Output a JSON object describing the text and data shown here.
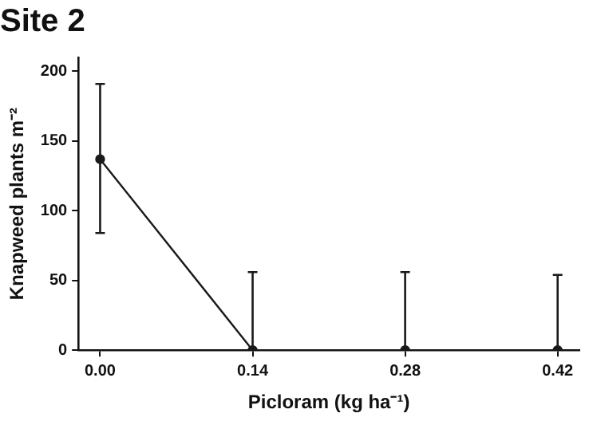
{
  "chart_data": {
    "type": "line",
    "title": "Site 2",
    "xlabel": "Picloram (kg ha⁻¹)",
    "ylabel": "Knapweed plants m⁻²",
    "x": [
      0,
      0.14,
      0.28,
      0.42
    ],
    "series": [
      {
        "color": "#1a1a1a",
        "values": [
          137,
          0,
          0,
          0
        ],
        "errors": [
          [
            84,
            191
          ],
          [
            0,
            56
          ],
          [
            0,
            56
          ],
          [
            0,
            54
          ]
        ]
      }
    ],
    "xlim": [
      -0.02,
      0.44
    ],
    "xticks": [
      {
        "value": 0,
        "label": "0.00"
      },
      0.14,
      0.28,
      0.42
    ],
    "ylim": [
      0,
      210
    ],
    "yticks": [
      0,
      50,
      100,
      150,
      200
    ],
    "grid": false,
    "legend": false,
    "marker": "circle",
    "line_style": "solid"
  }
}
